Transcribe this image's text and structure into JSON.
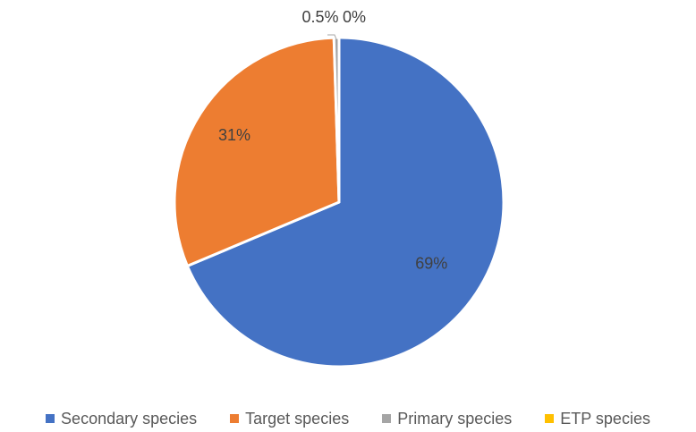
{
  "chart_data": {
    "type": "pie",
    "title": "",
    "categories": [
      "Secondary species",
      "Target species",
      "Primary species",
      "ETP species"
    ],
    "values": [
      69,
      31,
      0.5,
      0
    ],
    "labels": [
      "69%",
      "31%",
      "0.5%",
      "0%"
    ],
    "colors": [
      "#4472C4",
      "#ED7D31",
      "#A5A5A5",
      "#FFC000"
    ],
    "start_angle_deg": 0,
    "direction": "clockwise",
    "legend_position": "bottom"
  }
}
